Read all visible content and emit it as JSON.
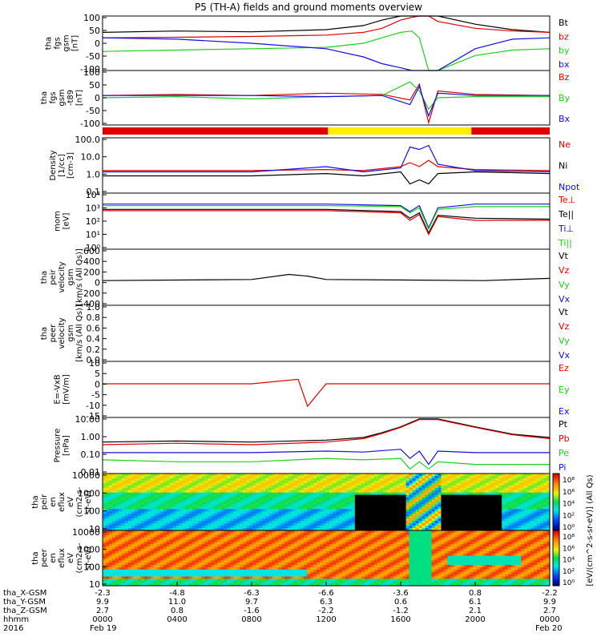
{
  "title": "P5 (TH-A) fields and ground moments overview",
  "colors": {
    "black": "#000000",
    "red": "#e00000",
    "green": "#22cc22",
    "blue": "#1010e0",
    "yellow": "#ffee00"
  },
  "chart_data": [
    {
      "type": "line",
      "ylabel_lines": [
        "tha",
        "fgs",
        "gsm",
        "[nT]"
      ],
      "yticks": [
        "100",
        "50",
        "0",
        "-50",
        "-100"
      ],
      "ylim": [
        -100,
        100
      ],
      "legend": [
        {
          "name": "Bt",
          "color": "black"
        },
        {
          "name": "bz",
          "color": "red"
        },
        {
          "name": "by",
          "color": "green"
        },
        {
          "name": "bx",
          "color": "blue"
        }
      ],
      "series": [
        {
          "name": "Bt",
          "color": "black",
          "t": [
            0,
            4,
            8,
            12,
            14,
            15,
            16,
            16.6,
            17,
            17.5,
            18,
            20,
            22,
            24
          ],
          "y": [
            40,
            45,
            42,
            50,
            65,
            85,
            100,
            100,
            100,
            100,
            100,
            70,
            50,
            40
          ]
        },
        {
          "name": "bz",
          "color": "red",
          "t": [
            0,
            4,
            8,
            12,
            14,
            15,
            16,
            16.6,
            17,
            17.5,
            18,
            20,
            22,
            24
          ],
          "y": [
            20,
            22,
            25,
            30,
            40,
            55,
            85,
            95,
            100,
            100,
            80,
            55,
            45,
            40
          ]
        },
        {
          "name": "by",
          "color": "green",
          "t": [
            0,
            4,
            8,
            12,
            14,
            15,
            16,
            16.6,
            17,
            17.5,
            18,
            20,
            22,
            24
          ],
          "y": [
            -30,
            -25,
            -20,
            -15,
            0,
            20,
            40,
            45,
            20,
            -100,
            -100,
            -45,
            -25,
            -20
          ]
        },
        {
          "name": "bx",
          "color": "blue",
          "t": [
            0,
            4,
            8,
            12,
            14,
            15,
            16,
            16.6,
            17,
            17.5,
            18,
            20,
            22,
            24
          ],
          "y": [
            20,
            15,
            0,
            -20,
            -50,
            -75,
            -90,
            -100,
            -100,
            -100,
            -100,
            -20,
            15,
            20
          ]
        }
      ]
    },
    {
      "type": "line",
      "ylabel_lines": [
        "tha",
        "fgs",
        "gsm",
        "-t89",
        "[nT]"
      ],
      "yticks": [
        "100",
        "50",
        "0",
        "-50",
        "-100"
      ],
      "ylim": [
        -130,
        110
      ],
      "legend": [
        {
          "name": "Bz",
          "color": "red"
        },
        {
          "name": "By",
          "color": "green"
        },
        {
          "name": "Bx",
          "color": "blue"
        }
      ],
      "series": [
        {
          "name": "Bz",
          "color": "red",
          "t": [
            0,
            4,
            8,
            12,
            15,
            16.5,
            17,
            17.5,
            18,
            20,
            24
          ],
          "y": [
            0,
            5,
            0,
            10,
            5,
            -20,
            50,
            -120,
            20,
            5,
            0
          ]
        },
        {
          "name": "By",
          "color": "green",
          "t": [
            0,
            4,
            8,
            12,
            15,
            16.5,
            17,
            17.5,
            18,
            20,
            24
          ],
          "y": [
            -10,
            -5,
            -15,
            -5,
            0,
            60,
            20,
            -60,
            -10,
            -5,
            -5
          ]
        },
        {
          "name": "Bx",
          "color": "blue",
          "t": [
            0,
            4,
            8,
            12,
            15,
            16.5,
            17,
            17.5,
            18,
            20,
            24
          ],
          "y": [
            0,
            0,
            0,
            -5,
            0,
            -40,
            40,
            -90,
            10,
            0,
            0
          ]
        }
      ]
    },
    {
      "type": "line",
      "ylabel_lines": [
        "Density",
        "[1/cc]",
        "[cm-3]"
      ],
      "yticks": [
        "100.0",
        "10.0",
        "1.0",
        "0.1"
      ],
      "yscale": "log",
      "ylim": [
        0.01,
        150
      ],
      "legend": [
        {
          "name": "Ne",
          "color": "red"
        },
        {
          "name": "Ni",
          "color": "black"
        },
        {
          "name": "Npot",
          "color": "blue"
        }
      ],
      "series": [
        {
          "name": "Ne",
          "color": "red",
          "t": [
            0,
            4,
            8,
            12,
            14,
            16,
            16.5,
            17,
            17.5,
            18,
            20,
            24
          ],
          "y": [
            0.5,
            0.5,
            0.5,
            0.6,
            0.5,
            1.0,
            2.0,
            1.0,
            3.0,
            1.0,
            0.6,
            0.5
          ]
        },
        {
          "name": "Ni",
          "color": "black",
          "t": [
            0,
            4,
            8,
            12,
            14,
            16,
            16.5,
            17,
            17.5,
            18,
            20,
            24
          ],
          "y": [
            0.2,
            0.2,
            0.2,
            0.3,
            0.2,
            0.4,
            0.05,
            0.1,
            0.05,
            0.3,
            0.4,
            0.3
          ]
        },
        {
          "name": "Npot",
          "color": "blue",
          "t": [
            0,
            4,
            8,
            12,
            14,
            16,
            16.5,
            17,
            17.5,
            18,
            20,
            24
          ],
          "y": [
            0.4,
            0.4,
            0.4,
            1.0,
            0.4,
            0.8,
            30,
            20,
            40,
            1.5,
            0.5,
            0.4
          ]
        }
      ]
    },
    {
      "type": "line",
      "ylabel_lines": [
        "mom",
        "[eV]"
      ],
      "yticks": [
        "10⁴",
        "10³",
        "10²",
        "10¹",
        "10⁰"
      ],
      "yscale": "log",
      "ylim": [
        1,
        30000
      ],
      "legend": [
        {
          "name": "Te⊥",
          "color": "red"
        },
        {
          "name": "Te||",
          "color": "black"
        },
        {
          "name": "Ti⊥",
          "color": "blue"
        },
        {
          "name": "Ti||",
          "color": "green"
        }
      ],
      "series": [
        {
          "name": "Ti⊥",
          "color": "blue",
          "t": [
            0,
            4,
            8,
            12,
            16,
            16.5,
            17,
            17.5,
            18,
            20,
            24
          ],
          "y": [
            4000,
            4000,
            4000,
            4000,
            3000,
            1000,
            3000,
            50,
            2000,
            4000,
            4000
          ]
        },
        {
          "name": "Ti||",
          "color": "green",
          "t": [
            0,
            4,
            8,
            12,
            16,
            16.5,
            17,
            17.5,
            18,
            20,
            24
          ],
          "y": [
            3000,
            3000,
            3000,
            3000,
            2500,
            800,
            2000,
            40,
            1500,
            2500,
            2500
          ]
        },
        {
          "name": "Te||",
          "color": "black",
          "t": [
            0,
            4,
            8,
            12,
            16,
            16.5,
            17,
            17.5,
            18,
            20,
            24
          ],
          "y": [
            1500,
            1500,
            1500,
            1500,
            1000,
            300,
            800,
            20,
            500,
            300,
            250
          ]
        },
        {
          "name": "Te⊥",
          "color": "red",
          "t": [
            0,
            4,
            8,
            12,
            16,
            16.5,
            17,
            17.5,
            18,
            20,
            24
          ],
          "y": [
            1200,
            1200,
            1200,
            1200,
            800,
            200,
            600,
            15,
            400,
            200,
            200
          ]
        }
      ]
    },
    {
      "type": "line",
      "ylabel_lines": [
        "tha",
        "peir",
        "velocity",
        "gsm",
        "[km/s (All Qs)]"
      ],
      "yticks": [
        "600",
        "400",
        "200",
        "0",
        "-200",
        "-400"
      ],
      "ylim": [
        -400,
        600
      ],
      "legend": [
        {
          "name": "Vt",
          "color": "black"
        },
        {
          "name": "Vz",
          "color": "red"
        },
        {
          "name": "Vy",
          "color": "green"
        },
        {
          "name": "Vx",
          "color": "blue"
        }
      ],
      "series": [
        {
          "name": "Vt",
          "color": "black",
          "t": [
            0,
            4,
            8,
            10,
            11,
            12,
            20.5,
            24
          ],
          "y": [
            40,
            50,
            60,
            150,
            120,
            60,
            40,
            80
          ]
        }
      ]
    },
    {
      "type": "line",
      "ylabel_lines": [
        "tha",
        "peer",
        "velocity",
        "gsm",
        "[km/s (All Qs)]"
      ],
      "yticks": [
        "1.0",
        "0.8",
        "0.6",
        "0.4",
        "0.2",
        "0.0"
      ],
      "ylim": [
        0,
        1
      ],
      "legend": [
        {
          "name": "Vt",
          "color": "black"
        },
        {
          "name": "Vz",
          "color": "red"
        },
        {
          "name": "Vy",
          "color": "green"
        },
        {
          "name": "Vx",
          "color": "blue"
        }
      ],
      "series": []
    },
    {
      "type": "line",
      "ylabel_lines": [
        "E=-VxB",
        "[mV/m]"
      ],
      "yticks": [
        "10",
        "5",
        "0",
        "-5",
        "-10",
        "-15"
      ],
      "ylim": [
        -15,
        10
      ],
      "legend": [
        {
          "name": "Ez",
          "color": "red"
        },
        {
          "name": "Ey",
          "color": "green"
        },
        {
          "name": "Ex",
          "color": "blue"
        }
      ],
      "series": [
        {
          "name": "Ez",
          "color": "red",
          "t": [
            0,
            4,
            8,
            10.5,
            11,
            12,
            20.5,
            24
          ],
          "y": [
            0,
            0,
            0,
            2,
            -10,
            0,
            0,
            0
          ]
        }
      ]
    },
    {
      "type": "line",
      "ylabel_lines": [
        "Pressure",
        "[nPa]"
      ],
      "yticks": [
        "10.00",
        "1.00",
        "0.10",
        "0.01"
      ],
      "yscale": "log",
      "ylim": [
        0.005,
        25
      ],
      "legend": [
        {
          "name": "Pt",
          "color": "black"
        },
        {
          "name": "Pb",
          "color": "red"
        },
        {
          "name": "Pe",
          "color": "green"
        },
        {
          "name": "Pi",
          "color": "blue"
        }
      ],
      "series": [
        {
          "name": "Pt",
          "color": "black",
          "t": [
            0,
            4,
            8,
            12,
            14,
            15,
            16,
            17,
            18,
            20,
            22,
            24
          ],
          "y": [
            0.6,
            0.7,
            0.6,
            0.8,
            1.2,
            2.5,
            6,
            20,
            20,
            6,
            2,
            1.2
          ]
        },
        {
          "name": "Pb",
          "color": "red",
          "t": [
            0,
            4,
            8,
            12,
            14,
            15,
            16,
            17,
            18,
            20,
            22,
            24
          ],
          "y": [
            0.4,
            0.5,
            0.4,
            0.6,
            1.0,
            2.2,
            5.5,
            18,
            18,
            5.5,
            1.8,
            1.0
          ]
        },
        {
          "name": "Pe",
          "color": "green",
          "t": [
            0,
            4,
            8,
            12,
            14,
            16,
            16.5,
            17,
            17.5,
            18,
            20,
            24
          ],
          "y": [
            0.04,
            0.03,
            0.03,
            0.05,
            0.04,
            0.05,
            0.01,
            0.03,
            0.01,
            0.03,
            0.02,
            0.02
          ]
        },
        {
          "name": "Pi",
          "color": "blue",
          "t": [
            0,
            4,
            8,
            12,
            14,
            16,
            16.5,
            17,
            17.5,
            18,
            20,
            24
          ],
          "y": [
            0.12,
            0.12,
            0.12,
            0.15,
            0.13,
            0.2,
            0.05,
            0.15,
            0.02,
            0.15,
            0.12,
            0.12
          ]
        }
      ]
    },
    {
      "type": "heatmap",
      "ylabel_lines": [
        "tha",
        "peir",
        "en",
        "eflux",
        "eV",
        "(cm2-s-",
        "sr-eV)"
      ],
      "yticks": [
        "10000",
        "1000",
        "100",
        "10"
      ],
      "colorbar_label": "[eV/(cm^2-s-sr-eV)] (All Qs)",
      "colorbar_ticks": [
        "10⁸",
        "10⁶",
        "10⁴",
        "10²",
        "10⁰"
      ]
    },
    {
      "type": "heatmap",
      "ylabel_lines": [
        "tha",
        "peer",
        "en",
        "eflux",
        "eV",
        "(cm2-s-",
        "sr-eV)"
      ],
      "yticks": [
        "10000",
        "1000",
        "100",
        "10"
      ],
      "colorbar_ticks": [
        "10⁸",
        "10⁶",
        "10⁴",
        "10²",
        "10⁰"
      ]
    }
  ],
  "mode_bar": [
    {
      "t0": 0,
      "t1": 12.1,
      "color": "red"
    },
    {
      "t0": 12.1,
      "t1": 19.8,
      "color": "yellow"
    },
    {
      "t0": 19.8,
      "t1": 24,
      "color": "red"
    }
  ],
  "xaxis": {
    "row_labels": [
      "tha_X-GSM",
      "tha_Y-GSM",
      "tha_Z-GSM",
      "hhmm",
      "2016"
    ],
    "columns": [
      {
        "t": 0,
        "values": [
          "-2.3",
          "9.9",
          "2.7",
          "0000",
          "Feb 19"
        ]
      },
      {
        "t": 4,
        "values": [
          "-4.8",
          "11.0",
          "0.8",
          "0400",
          ""
        ]
      },
      {
        "t": 8,
        "values": [
          "-6.3",
          "9.7",
          "-1.6",
          "0800",
          ""
        ]
      },
      {
        "t": 12,
        "values": [
          "-6.6",
          "6.3",
          "-2.2",
          "1200",
          ""
        ]
      },
      {
        "t": 16,
        "values": [
          "-3.6",
          "0.6",
          "-1.2",
          "1600",
          ""
        ]
      },
      {
        "t": 20,
        "values": [
          "0.8",
          "6.1",
          "2.1",
          "2000",
          ""
        ]
      },
      {
        "t": 24,
        "values": [
          "-2.2",
          "9.9",
          "2.7",
          "0000",
          "Feb 20"
        ]
      }
    ]
  }
}
